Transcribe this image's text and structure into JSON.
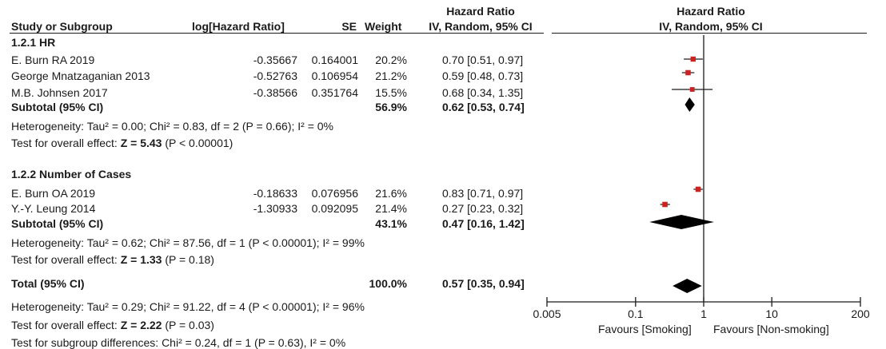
{
  "header": {
    "study": "Study or Subgroup",
    "loghr": "log[Hazard Ratio]",
    "se": "SE",
    "weight": "Weight",
    "hr_title": "Hazard Ratio",
    "hr_method": "IV, Random, 95% CI",
    "plot_title": "Hazard Ratio",
    "plot_method": "IV, Random, 95% CI"
  },
  "groups": [
    {
      "title": "1.2.1 HR",
      "studies": [
        {
          "name": "E. Burn RA 2019",
          "loghr": "-0.35667",
          "se": "0.164001",
          "weight": "20.2%",
          "ci": "0.70 [0.51, 0.97]"
        },
        {
          "name": "George Mnatzaganian 2013",
          "loghr": "-0.52763",
          "se": "0.106954",
          "weight": "21.2%",
          "ci": "0.59 [0.48, 0.73]"
        },
        {
          "name": "M.B. Johnsen 2017",
          "loghr": "-0.38566",
          "se": "0.351764",
          "weight": "15.5%",
          "ci": "0.68 [0.34, 1.35]"
        }
      ],
      "subtotal": {
        "label": "Subtotal (95% CI)",
        "weight": "56.9%",
        "ci": "0.62 [0.53, 0.74]"
      },
      "heterogeneity": "Heterogeneity: Tau² = 0.00; Chi² = 0.83, df = 2 (P = 0.66); I² = 0%",
      "overall_prefix": "Test for overall effect: ",
      "overall_z": "Z = 5.43",
      "overall_p": " (P < 0.00001)"
    },
    {
      "title": "1.2.2 Number of Cases",
      "studies": [
        {
          "name": "E. Burn OA 2019",
          "loghr": "-0.18633",
          "se": "0.076956",
          "weight": "21.6%",
          "ci": "0.83 [0.71, 0.97]"
        },
        {
          "name": "Y.-Y. Leung 2014",
          "loghr": "-1.30933",
          "se": "0.092095",
          "weight": "21.4%",
          "ci": "0.27 [0.23, 0.32]"
        }
      ],
      "subtotal": {
        "label": "Subtotal (95% CI)",
        "weight": "43.1%",
        "ci": "0.47 [0.16, 1.42]"
      },
      "heterogeneity": "Heterogeneity: Tau² = 0.62; Chi² = 87.56, df = 1 (P < 0.00001); I² = 99%",
      "overall_prefix": "Test for overall effect: ",
      "overall_z": "Z = 1.33",
      "overall_p": " (P = 0.18)"
    }
  ],
  "total": {
    "label": "Total (95% CI)",
    "weight": "100.0%",
    "ci": "0.57 [0.35, 0.94]",
    "heterogeneity": "Heterogeneity: Tau² = 0.29; Chi² = 91.22, df = 4 (P < 0.00001); I² = 96%",
    "overall_prefix": "Test for overall effect: ",
    "overall_z": "Z = 2.22",
    "overall_p": " (P = 0.03)",
    "subgroup_test": "Test for subgroup differences: Chi² = 0.24, df = 1 (P = 0.63), I² = 0%"
  },
  "axis": {
    "favours_left": "Favours [Smoking]",
    "favours_right": "Favours [Non-smoking]"
  },
  "colors": {
    "marker": "#cc2222",
    "diamond": "#000000",
    "line": "#1a1a1a"
  },
  "chart_data": {
    "type": "forest",
    "scale": "log",
    "xlim": [
      0.005,
      200
    ],
    "ticks": [
      {
        "value": 0.005,
        "label": "0.005"
      },
      {
        "value": 0.1,
        "label": "0.1"
      },
      {
        "value": 1,
        "label": "1"
      },
      {
        "value": 10,
        "label": "10"
      },
      {
        "value": 200,
        "label": "200"
      }
    ],
    "studies": [
      {
        "name": "E. Burn RA 2019",
        "hr": 0.7,
        "lo": 0.51,
        "hi": 0.97,
        "weight": 20.2
      },
      {
        "name": "George Mnatzaganian 2013",
        "hr": 0.59,
        "lo": 0.48,
        "hi": 0.73,
        "weight": 21.2
      },
      {
        "name": "M.B. Johnsen 2017",
        "hr": 0.68,
        "lo": 0.34,
        "hi": 1.35,
        "weight": 15.5
      },
      {
        "name": "E. Burn OA 2019",
        "hr": 0.83,
        "lo": 0.71,
        "hi": 0.97,
        "weight": 21.6
      },
      {
        "name": "Y.-Y. Leung 2014",
        "hr": 0.27,
        "lo": 0.23,
        "hi": 0.32,
        "weight": 21.4
      }
    ],
    "summaries": [
      {
        "name": "Subtotal 1.2.1",
        "hr": 0.62,
        "lo": 0.53,
        "hi": 0.74
      },
      {
        "name": "Subtotal 1.2.2",
        "hr": 0.47,
        "lo": 0.16,
        "hi": 1.42
      },
      {
        "name": "Total",
        "hr": 0.57,
        "lo": 0.35,
        "hi": 0.94
      }
    ]
  }
}
